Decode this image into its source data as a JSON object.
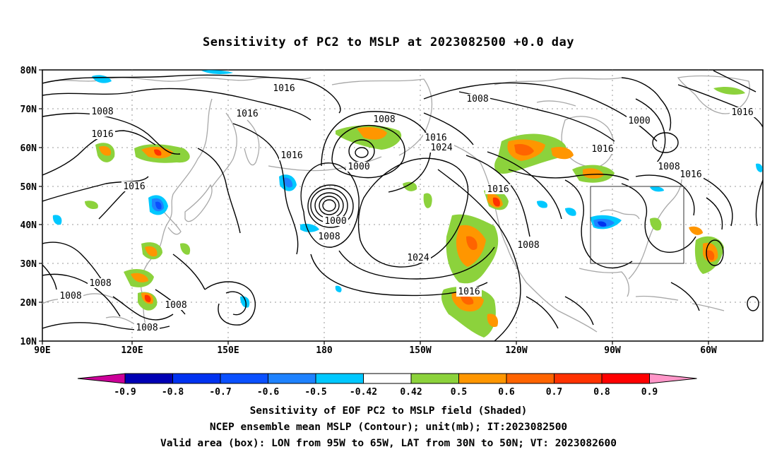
{
  "title": "Sensitivity of PC2 to MSLP at 2023082500 +0.0 day",
  "map": {
    "lat_labels": [
      "80N",
      "70N",
      "60N",
      "50N",
      "40N",
      "30N",
      "20N",
      "10N"
    ],
    "lon_labels": [
      "90E",
      "120E",
      "150E",
      "180",
      "150W",
      "120W",
      "90W",
      "60W"
    ],
    "valid_box": {
      "lon_from": "95W",
      "lon_to": "65W",
      "lat_from": "30N",
      "lat_to": "50N"
    },
    "contour_labels": [
      {
        "text": "1016",
        "pos": "upper-left-ne"
      },
      {
        "text": "1016",
        "pos": "upper-left"
      },
      {
        "text": "1008",
        "pos": "upper-left-w"
      },
      {
        "text": "1016",
        "pos": "west-60n"
      },
      {
        "text": "1016",
        "pos": "west-50n"
      },
      {
        "text": "1016",
        "pos": "dateline-52n"
      },
      {
        "text": "1008",
        "pos": "aleutian-north"
      },
      {
        "text": "1000",
        "pos": "aleutian-low"
      },
      {
        "text": "1016",
        "pos": "gulf-alaska-a"
      },
      {
        "text": "1024",
        "pos": "gulf-alaska-b"
      },
      {
        "text": "1000",
        "pos": "pacific-low-center"
      },
      {
        "text": "1008",
        "pos": "pacific-low-ring"
      },
      {
        "text": "1024",
        "pos": "pacific-high"
      },
      {
        "text": "1016",
        "pos": "baja"
      },
      {
        "text": "1008",
        "pos": "arctic"
      },
      {
        "text": "1016",
        "pos": "west-canada"
      },
      {
        "text": "1008",
        "pos": "southwest-us"
      },
      {
        "text": "1016",
        "pos": "central-canada"
      },
      {
        "text": "1000",
        "pos": "hudson-bay"
      },
      {
        "text": "1008",
        "pos": "east-canada"
      },
      {
        "text": "1016",
        "pos": "labrador"
      },
      {
        "text": "1016",
        "pos": "greenland"
      },
      {
        "text": "1008",
        "pos": "south-china-sea"
      },
      {
        "text": "1008",
        "pos": "west-pacific-a"
      },
      {
        "text": "1008",
        "pos": "philippine-sea"
      },
      {
        "text": "1008",
        "pos": "philippines"
      }
    ]
  },
  "colorbar": {
    "labels": [
      "-0.9",
      "-0.8",
      "-0.7",
      "-0.6",
      "-0.5",
      "-0.42",
      "0.42",
      "0.5",
      "0.6",
      "0.7",
      "0.8",
      "0.9"
    ],
    "colors": {
      "below": "#cc0099",
      "bins": [
        "#0000b4",
        "#0032f0",
        "#0a50ff",
        "#1e82ff",
        "#00c8ff",
        "#ffffff",
        "#8cd23c",
        "#ff9600",
        "#ff6400",
        "#ff3200",
        "#ff0000"
      ],
      "above": "#ff96c8"
    }
  },
  "captions": {
    "line1": "Sensitivity of EOF PC2 to MSLP field (Shaded)",
    "line2": "NCEP ensemble mean MSLP (Contour); unit(mb); IT:2023082500",
    "line3": "Valid area (box): LON from 95W to 65W, LAT from 30N to 50N; VT: 2023082600"
  }
}
